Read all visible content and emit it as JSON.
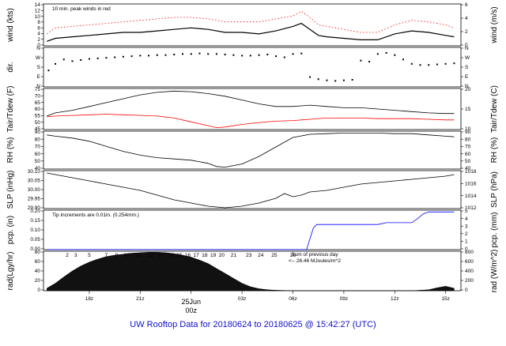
{
  "footer_title": "UW Rooftop Data for 20180624  to  20180625 @ 15:42:27  (UTC)",
  "colors": {
    "series": "#000000",
    "peak": "#ff0000",
    "precip": "#0000ff",
    "annot": "#9900cc",
    "date": "#ff0000",
    "footer": "#1010cc"
  },
  "chart_data": [
    {
      "id": "wind",
      "type": "line",
      "ylabel_left": "wind (kts)",
      "ylabel_right": "wind (m/s)",
      "yticks_left": [
        "0",
        "2",
        "4",
        "6",
        "8",
        "10",
        "12",
        "14"
      ],
      "yticks_right": [
        "0",
        "2",
        "4",
        "6"
      ],
      "ylim": [
        0,
        14
      ],
      "annotation": "10 min. peak winds in red",
      "series": [
        {
          "x": [
            15.5,
            16,
            17,
            18,
            19,
            20,
            21,
            22,
            23,
            24,
            25,
            26,
            27,
            28,
            29,
            30,
            30.5,
            31,
            31.5,
            32,
            33,
            34,
            35,
            36,
            37,
            38,
            39,
            39.5
          ],
          "y": [
            1.5,
            2.5,
            3.0,
            3.5,
            4.0,
            4.5,
            4.5,
            5.0,
            5.5,
            6.0,
            5.5,
            4.5,
            4.5,
            4.0,
            5.0,
            6.5,
            7.5,
            5.5,
            3.5,
            3.0,
            2.5,
            2.0,
            2.0,
            4.0,
            5.0,
            4.5,
            3.5,
            3.0
          ]
        },
        {
          "x": [
            15.5,
            16,
            17,
            18,
            19,
            20,
            21,
            22,
            23,
            24,
            25,
            26,
            27,
            28,
            29,
            30,
            30.5,
            31,
            31.5,
            32,
            33,
            34,
            35,
            36,
            37,
            38,
            39,
            39.5
          ],
          "y": [
            4.0,
            6.0,
            6.5,
            7.0,
            7.5,
            8.0,
            8.5,
            9.0,
            9.5,
            9.5,
            9.0,
            8.0,
            8.0,
            8.0,
            9.0,
            10.0,
            11.5,
            9.5,
            7.0,
            6.5,
            5.5,
            4.5,
            4.5,
            7.0,
            8.5,
            8.0,
            7.0,
            6.0
          ]
        }
      ]
    },
    {
      "id": "dir",
      "type": "scatter",
      "ylabel_left": "dir.",
      "yticks_left": [
        "N",
        "E",
        "S",
        "W",
        "N"
      ],
      "yticks_right": [
        "N",
        "E",
        "S",
        "W",
        "N"
      ],
      "ylim": [
        0,
        360
      ],
      "x": [
        15.6,
        16,
        16.5,
        17,
        17.5,
        18,
        18.5,
        19,
        19.5,
        20,
        20.5,
        21,
        21.5,
        22,
        22.5,
        23,
        23.5,
        24,
        24.5,
        25,
        25.5,
        26,
        26.5,
        27,
        27.5,
        28,
        28.5,
        29,
        29.5,
        30,
        30.5,
        31,
        31.5,
        32,
        32.5,
        33,
        33.5,
        34,
        34.5,
        35,
        35.5,
        36,
        36.5,
        37,
        37.5,
        38,
        38.5,
        39,
        39.5
      ],
      "y": [
        150,
        210,
        250,
        235,
        245,
        255,
        260,
        265,
        270,
        275,
        280,
        285,
        285,
        290,
        290,
        295,
        300,
        300,
        305,
        300,
        300,
        295,
        290,
        285,
        285,
        290,
        295,
        280,
        270,
        300,
        305,
        90,
        70,
        60,
        55,
        60,
        65,
        240,
        230,
        300,
        310,
        290,
        250,
        210,
        200,
        200,
        205,
        210,
        215
      ]
    },
    {
      "id": "temp",
      "type": "line",
      "ylabel_left": "Tair/Tdew (F)",
      "ylabel_right": "Tair/Tdew (C)",
      "yticks_left": [
        "45",
        "50",
        "55",
        "60",
        "65",
        "70",
        "75"
      ],
      "yticks_right": [
        "10",
        "15",
        "20"
      ],
      "ylim": [
        43,
        75
      ],
      "series": [
        {
          "x": [
            15.5,
            16,
            17,
            18,
            19,
            20,
            21,
            22,
            23,
            24,
            25,
            26,
            27,
            28,
            29,
            30,
            31,
            32,
            33,
            34,
            35,
            36,
            37,
            38,
            39,
            39.5
          ],
          "y": [
            53.5,
            56,
            58,
            61,
            64,
            67,
            70,
            72,
            73,
            72.5,
            71,
            69,
            66,
            63,
            61,
            61,
            62,
            61,
            60,
            60,
            59,
            58,
            57,
            56,
            55.5,
            55.5
          ]
        },
        {
          "x": [
            15.5,
            16,
            17,
            18,
            19,
            20,
            21,
            22,
            23,
            24,
            25,
            25.5,
            26,
            27,
            28,
            29,
            30,
            31,
            32,
            33,
            34,
            35,
            36,
            37,
            38,
            39,
            39.5
          ],
          "y": [
            53,
            53.5,
            54,
            54.5,
            55,
            54.5,
            54,
            53.5,
            52,
            49,
            46,
            44.5,
            45,
            47,
            48.5,
            49.5,
            50,
            51,
            52,
            52,
            52,
            51.5,
            51.5,
            51.5,
            51,
            50.5,
            50.5
          ]
        }
      ]
    },
    {
      "id": "rh",
      "type": "line",
      "ylabel_left": "RH (%)",
      "ylabel_right": "RH (%)",
      "yticks_left": [
        "40",
        "50",
        "60",
        "70",
        "80",
        "90"
      ],
      "yticks_right": [
        "40",
        "50",
        "60",
        "70",
        "80",
        "90"
      ],
      "ylim": [
        35,
        95
      ],
      "series": [
        {
          "x": [
            15.5,
            16,
            17,
            18,
            19,
            20,
            21,
            22,
            23,
            24,
            25,
            25.5,
            26,
            27,
            28,
            29,
            30,
            31,
            32,
            33,
            34,
            35,
            36,
            37,
            38,
            39,
            39.5
          ],
          "y": [
            89,
            87,
            84,
            79,
            71,
            63,
            57,
            53,
            51,
            49,
            44,
            39,
            38,
            43,
            55,
            70,
            85,
            90,
            91,
            92,
            92,
            92,
            91,
            91,
            89,
            87,
            86
          ]
        }
      ]
    },
    {
      "id": "slp",
      "type": "line",
      "ylabel_left": "SLP (inHg)",
      "ylabel_right": "SLP (hPa)",
      "yticks_left": [
        "29.90",
        "29.95",
        "30.00",
        "30.05",
        "30.10"
      ],
      "yticks_right": [
        "1012",
        "1014",
        "1016",
        "1018"
      ],
      "ylim": [
        29.875,
        30.115
      ],
      "series": [
        {
          "x": [
            15.5,
            16,
            17,
            18,
            19,
            20,
            21,
            22,
            23,
            24,
            25,
            26,
            27,
            28,
            29,
            29.5,
            30,
            30.5,
            31,
            32,
            33,
            34,
            35,
            36,
            37,
            38,
            39,
            39.5
          ],
          "y": [
            30.1,
            30.09,
            30.07,
            30.05,
            30.03,
            30.01,
            29.99,
            29.96,
            29.93,
            29.91,
            29.89,
            29.88,
            29.89,
            29.91,
            29.94,
            29.97,
            29.95,
            29.96,
            29.98,
            29.99,
            30.01,
            30.03,
            30.04,
            30.05,
            30.06,
            30.07,
            30.08,
            30.09
          ]
        }
      ]
    },
    {
      "id": "pcp",
      "type": "line",
      "ylabel_left": "pcp. (in)",
      "ylabel_right": "pcp. (mm)",
      "yticks_left": [
        "0.00",
        "0.05",
        "0.10",
        "0.15",
        "0.20"
      ],
      "yticks_right": [
        "0",
        "1",
        "2",
        "3",
        "4",
        "5"
      ],
      "ylim": [
        0,
        0.22
      ],
      "annotation": "Tip increments are 0.01in. (0.254mm.)",
      "series": [
        {
          "x": [
            15.5,
            30.8,
            31.0,
            31.2,
            31.4,
            32,
            33,
            35,
            35.5,
            36,
            37,
            37.3,
            37.7,
            38,
            39,
            39.5
          ],
          "y": [
            0,
            0,
            0.06,
            0.12,
            0.14,
            0.14,
            0.14,
            0.14,
            0.15,
            0.15,
            0.15,
            0.17,
            0.2,
            0.21,
            0.21,
            0.21
          ]
        }
      ]
    },
    {
      "id": "rad",
      "type": "area",
      "ylabel_left": "rad(Lgy/hr)",
      "ylabel_right": "rad (W/m^2)",
      "yticks_left": [
        "0",
        "20",
        "40",
        "60",
        "80"
      ],
      "yticks_right": [
        "0",
        "200",
        "400",
        "600",
        "800"
      ],
      "ylim": [
        0,
        80
      ],
      "annotation_lines": [
        "Sum of previous day",
        "<-- 26.46 MJoules/m^2"
      ],
      "hour_labels": [
        "2",
        "3",
        "5",
        "7",
        "8",
        "10",
        "11",
        "12",
        "13",
        "14",
        "15",
        "16",
        "17",
        "18",
        "19",
        "20",
        "21",
        "23",
        "24",
        "25",
        "26"
      ],
      "hour_label_x": [
        16.7,
        17.2,
        18.0,
        19.0,
        19.6,
        20.2,
        20.9,
        21.6,
        22.2,
        22.8,
        23.3,
        23.8,
        24.3,
        24.8,
        25.3,
        25.8,
        26.5,
        27.4,
        28.1,
        28.9,
        30.0
      ],
      "x": [
        15.5,
        16,
        16.5,
        17,
        17.5,
        18,
        18.5,
        19,
        19.5,
        20,
        20.5,
        21,
        21.5,
        22,
        22.5,
        23,
        23.5,
        24,
        24.5,
        25,
        25.5,
        26,
        26.5,
        27,
        27.5,
        28,
        28.5,
        29,
        30,
        37,
        38,
        38.5,
        39,
        39.5
      ],
      "y": [
        5,
        15,
        28,
        40,
        50,
        58,
        64,
        69,
        72,
        74,
        76,
        77,
        78,
        78,
        77,
        75,
        72,
        68,
        62,
        55,
        45,
        35,
        25,
        15,
        8,
        4,
        2,
        1,
        0,
        0,
        2,
        6,
        9,
        5
      ]
    }
  ],
  "x_axis": {
    "labels": [
      "18z",
      "21z",
      "00z",
      "03z",
      "06z",
      "09z",
      "12z",
      "15z"
    ],
    "values": [
      18,
      21,
      24,
      27,
      30,
      33,
      36,
      39
    ],
    "date_label": "25Jun",
    "xlim": [
      15.3,
      39.9
    ]
  }
}
